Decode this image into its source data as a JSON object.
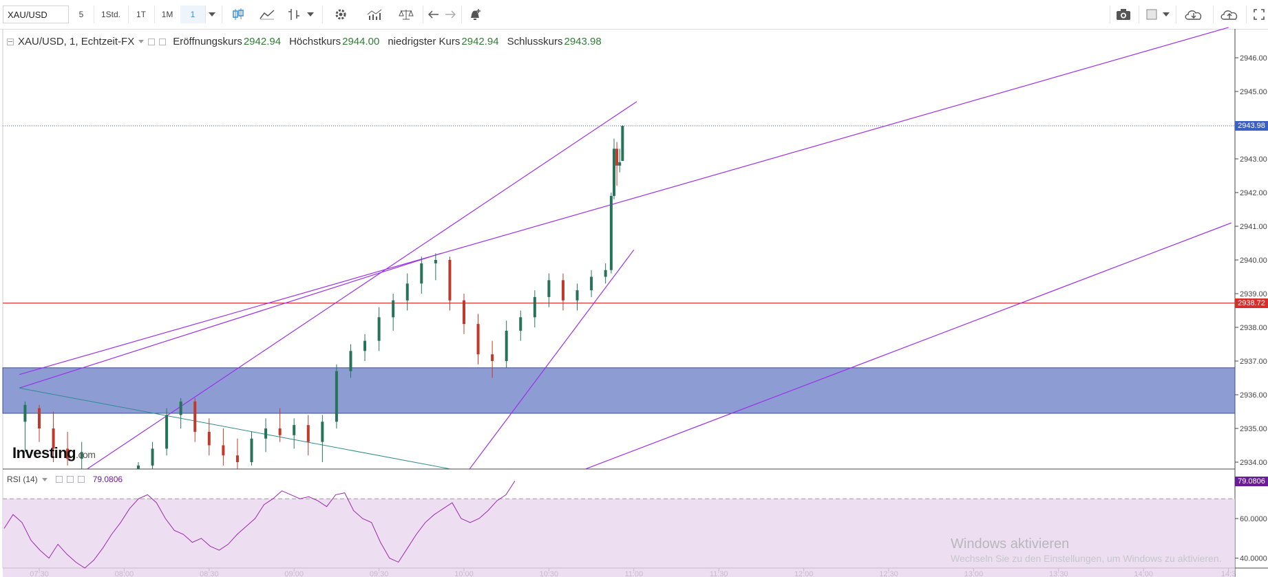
{
  "toolbar": {
    "symbol": "XAU/USD",
    "intervals": [
      "5",
      "1Std.",
      "1T",
      "1M",
      "1"
    ],
    "active_interval": "1"
  },
  "legend": {
    "title": "XAU/USD, 1, Echtzeit-FX",
    "open_label": "Eröffnungskurs",
    "open": "2942.94",
    "high_label": "Höchstkurs",
    "high": "2944.00",
    "low_label": "niedrigster Kurs",
    "low": "2942.94",
    "close_label": "Schlusskurs",
    "close": "2943.98"
  },
  "price_axis": {
    "ticks": [
      "2946.00",
      "2945.00",
      "2943.00",
      "2942.00",
      "2941.00",
      "2940.00",
      "2939.00",
      "2938.00",
      "2937.00",
      "2936.00",
      "2935.00",
      "2934.00"
    ],
    "last_price": "2943.98",
    "last_price_color": "#3d5fc4",
    "hline_price": "2938.72",
    "hline_color": "#d32f2f"
  },
  "time_axis": {
    "ticks": [
      "07:30",
      "08:00",
      "08:30",
      "09:00",
      "09:30",
      "10:00",
      "10:30",
      "11:00",
      "11:30",
      "12:00",
      "12:30",
      "13:00",
      "13:30",
      "14:00",
      "14:3"
    ]
  },
  "rsi": {
    "label": "RSI (14)",
    "value": "79.0806",
    "ticks": [
      "60.0000",
      "40.0000"
    ],
    "color": "#9c27b0"
  },
  "brand": {
    "name": "Investing",
    "suffix": ".com"
  },
  "watermark": {
    "line1": "Windows aktivieren",
    "line2": "Wechseln Sie zu den Einstellungen, um Windows zu aktivieren."
  },
  "colors": {
    "up": "#26735a",
    "down": "#c0392b",
    "trendline": "#9b30e8",
    "zone": "#5c74c0"
  },
  "chart_data": {
    "type": "candlestick",
    "x_unit": "time (1-minute candles)",
    "xlim": [
      "07:24",
      "14:30"
    ],
    "ylim": [
      2933.8,
      2946.4
    ],
    "candles": [
      {
        "t": "07:25",
        "o": 2935.2,
        "h": 2935.8,
        "l": 2934.3,
        "c": 2935.7
      },
      {
        "t": "07:30",
        "o": 2935.6,
        "h": 2935.7,
        "l": 2934.6,
        "c": 2935.0
      },
      {
        "t": "07:35",
        "o": 2935.0,
        "h": 2935.5,
        "l": 2934.0,
        "c": 2934.4
      },
      {
        "t": "07:40",
        "o": 2934.4,
        "h": 2934.9,
        "l": 2933.9,
        "c": 2934.1
      },
      {
        "t": "07:45",
        "o": 2934.1,
        "h": 2934.6,
        "l": 2933.8,
        "c": 2934.3
      },
      {
        "t": "08:05",
        "o": 2933.8,
        "h": 2934.0,
        "l": 2933.8,
        "c": 2933.9
      },
      {
        "t": "08:10",
        "o": 2933.9,
        "h": 2934.6,
        "l": 2933.8,
        "c": 2934.4
      },
      {
        "t": "08:15",
        "o": 2934.4,
        "h": 2935.6,
        "l": 2934.2,
        "c": 2935.4
      },
      {
        "t": "08:20",
        "o": 2935.4,
        "h": 2935.9,
        "l": 2935.0,
        "c": 2935.8
      },
      {
        "t": "08:25",
        "o": 2935.8,
        "h": 2935.9,
        "l": 2934.6,
        "c": 2934.9
      },
      {
        "t": "08:30",
        "o": 2934.9,
        "h": 2935.3,
        "l": 2934.2,
        "c": 2934.5
      },
      {
        "t": "08:35",
        "o": 2934.5,
        "h": 2935.0,
        "l": 2933.9,
        "c": 2934.2
      },
      {
        "t": "08:40",
        "o": 2934.2,
        "h": 2934.7,
        "l": 2933.8,
        "c": 2934.0
      },
      {
        "t": "08:45",
        "o": 2934.0,
        "h": 2934.9,
        "l": 2933.9,
        "c": 2934.7
      },
      {
        "t": "08:50",
        "o": 2934.7,
        "h": 2935.3,
        "l": 2934.3,
        "c": 2935.0
      },
      {
        "t": "08:55",
        "o": 2935.0,
        "h": 2935.6,
        "l": 2934.6,
        "c": 2934.8
      },
      {
        "t": "09:00",
        "o": 2934.8,
        "h": 2935.3,
        "l": 2934.4,
        "c": 2935.1
      },
      {
        "t": "09:05",
        "o": 2935.1,
        "h": 2935.4,
        "l": 2934.2,
        "c": 2934.6
      },
      {
        "t": "09:10",
        "o": 2934.6,
        "h": 2935.4,
        "l": 2934.0,
        "c": 2935.2
      },
      {
        "t": "09:15",
        "o": 2935.2,
        "h": 2936.9,
        "l": 2935.0,
        "c": 2936.7
      },
      {
        "t": "09:20",
        "o": 2936.7,
        "h": 2937.5,
        "l": 2936.5,
        "c": 2937.3
      },
      {
        "t": "09:25",
        "o": 2937.3,
        "h": 2937.8,
        "l": 2937.0,
        "c": 2937.6
      },
      {
        "t": "09:30",
        "o": 2937.6,
        "h": 2938.6,
        "l": 2937.3,
        "c": 2938.3
      },
      {
        "t": "09:35",
        "o": 2938.3,
        "h": 2939.0,
        "l": 2937.9,
        "c": 2938.8
      },
      {
        "t": "09:40",
        "o": 2938.8,
        "h": 2939.6,
        "l": 2938.5,
        "c": 2939.3
      },
      {
        "t": "09:45",
        "o": 2939.3,
        "h": 2940.1,
        "l": 2939.0,
        "c": 2939.9
      },
      {
        "t": "09:50",
        "o": 2939.9,
        "h": 2940.2,
        "l": 2939.4,
        "c": 2940.0
      },
      {
        "t": "09:55",
        "o": 2940.0,
        "h": 2940.1,
        "l": 2938.5,
        "c": 2938.8
      },
      {
        "t": "10:00",
        "o": 2938.8,
        "h": 2939.0,
        "l": 2937.8,
        "c": 2938.1
      },
      {
        "t": "10:05",
        "o": 2938.1,
        "h": 2938.4,
        "l": 2936.9,
        "c": 2937.2
      },
      {
        "t": "10:10",
        "o": 2937.2,
        "h": 2937.6,
        "l": 2936.5,
        "c": 2937.0
      },
      {
        "t": "10:15",
        "o": 2937.0,
        "h": 2938.2,
        "l": 2936.8,
        "c": 2937.9
      },
      {
        "t": "10:20",
        "o": 2937.9,
        "h": 2938.5,
        "l": 2937.6,
        "c": 2938.3
      },
      {
        "t": "10:25",
        "o": 2938.3,
        "h": 2939.1,
        "l": 2938.0,
        "c": 2938.9
      },
      {
        "t": "10:30",
        "o": 2938.9,
        "h": 2939.6,
        "l": 2938.6,
        "c": 2939.4
      },
      {
        "t": "10:35",
        "o": 2939.4,
        "h": 2939.6,
        "l": 2938.5,
        "c": 2938.8
      },
      {
        "t": "10:40",
        "o": 2938.8,
        "h": 2939.3,
        "l": 2938.5,
        "c": 2939.1
      },
      {
        "t": "10:45",
        "o": 2939.1,
        "h": 2939.7,
        "l": 2938.9,
        "c": 2939.5
      },
      {
        "t": "10:50",
        "o": 2939.5,
        "h": 2939.9,
        "l": 2939.3,
        "c": 2939.7
      },
      {
        "t": "10:52",
        "o": 2939.7,
        "h": 2942.0,
        "l": 2939.6,
        "c": 2941.9
      },
      {
        "t": "10:53",
        "o": 2941.9,
        "h": 2943.6,
        "l": 2941.8,
        "c": 2943.3
      },
      {
        "t": "10:54",
        "o": 2943.3,
        "h": 2943.5,
        "l": 2942.2,
        "c": 2942.8
      },
      {
        "t": "10:55",
        "o": 2942.8,
        "h": 2943.3,
        "l": 2942.6,
        "c": 2942.9
      },
      {
        "t": "10:56",
        "o": 2942.94,
        "h": 2944.0,
        "l": 2942.94,
        "c": 2943.98
      }
    ],
    "horizontal_lines": [
      2943.98,
      2938.72
    ],
    "zone": {
      "from": 2935.45,
      "to": 2936.8
    },
    "rsi_series": {
      "name": "RSI (14)",
      "ylim": [
        35,
        85
      ],
      "levels": [
        70,
        30
      ],
      "values": [
        55,
        62,
        58,
        49,
        44,
        40,
        47,
        42,
        38,
        35,
        39,
        45,
        52,
        58,
        65,
        70,
        72,
        68,
        60,
        54,
        52,
        48,
        50,
        46,
        44,
        47,
        52,
        56,
        60,
        67,
        70,
        74,
        72,
        70,
        71,
        69,
        66,
        72,
        73,
        64,
        60,
        58,
        48,
        40,
        38,
        45,
        52,
        58,
        62,
        65,
        68,
        60,
        58,
        60,
        64,
        69,
        72,
        79
      ]
    }
  }
}
